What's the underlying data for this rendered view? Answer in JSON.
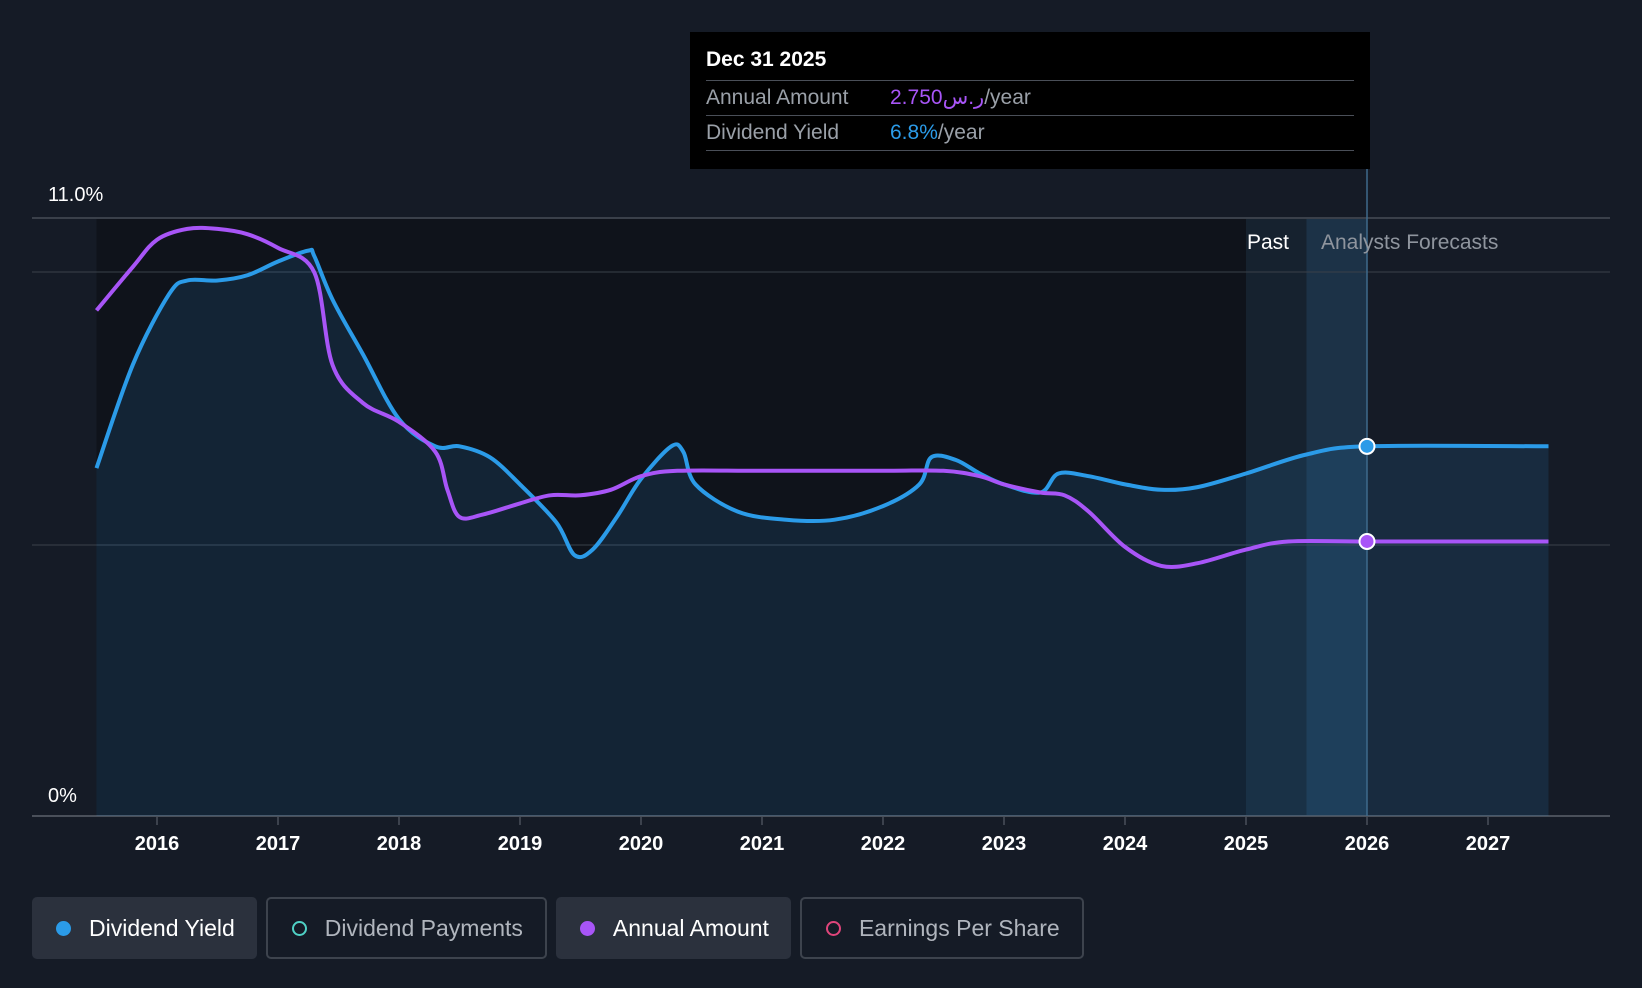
{
  "tooltip": {
    "date": "Dec 31 2025",
    "annual_label": "Annual Amount",
    "annual_value": "2.750ر.س",
    "annual_unit": "/year",
    "yield_label": "Dividend Yield",
    "yield_value": "6.8%",
    "yield_unit": "/year"
  },
  "legend": [
    {
      "label": "Dividend Yield",
      "color": "#2b9be8",
      "active": true,
      "filled": true
    },
    {
      "label": "Dividend Payments",
      "color": "#4fd1c5",
      "active": false,
      "filled": false
    },
    {
      "label": "Annual Amount",
      "color": "#a855f7",
      "active": true,
      "filled": true
    },
    {
      "label": "Earnings Per Share",
      "color": "#e0457b",
      "active": false,
      "filled": false
    }
  ],
  "colors": {
    "background": "#151b26",
    "past_region": "#0f131b",
    "yield_line": "#2b9be8",
    "annual_line": "#a855f7",
    "grid": "#3a404a"
  },
  "chart_data": {
    "type": "line",
    "y_tick_labels": [
      "11.0%",
      "0%"
    ],
    "ylim": [
      0,
      11
    ],
    "xlim": [
      2015.5,
      2027.5
    ],
    "x_tick_labels": [
      "2016",
      "2017",
      "2018",
      "2019",
      "2020",
      "2021",
      "2022",
      "2023",
      "2024",
      "2025",
      "2026",
      "2027"
    ],
    "region_labels": {
      "past": "Past",
      "forecast": "Analysts Forecasts"
    },
    "highlight_x": 2026.0,
    "series": [
      {
        "name": "Dividend Yield",
        "color": "#2b9be8",
        "area": true,
        "points": [
          [
            2015.5,
            6.4
          ],
          [
            2015.8,
            8.3
          ],
          [
            2016.1,
            9.6
          ],
          [
            2016.25,
            9.85
          ],
          [
            2016.5,
            9.85
          ],
          [
            2016.75,
            9.95
          ],
          [
            2017.0,
            10.2
          ],
          [
            2017.25,
            10.4
          ],
          [
            2017.3,
            10.3
          ],
          [
            2017.45,
            9.5
          ],
          [
            2017.7,
            8.5
          ],
          [
            2018.0,
            7.3
          ],
          [
            2018.3,
            6.8
          ],
          [
            2018.5,
            6.8
          ],
          [
            2018.75,
            6.6
          ],
          [
            2019.0,
            6.1
          ],
          [
            2019.3,
            5.4
          ],
          [
            2019.45,
            4.8
          ],
          [
            2019.6,
            4.9
          ],
          [
            2019.8,
            5.5
          ],
          [
            2020.0,
            6.2
          ],
          [
            2020.25,
            6.8
          ],
          [
            2020.35,
            6.7
          ],
          [
            2020.45,
            6.1
          ],
          [
            2020.8,
            5.6
          ],
          [
            2021.2,
            5.45
          ],
          [
            2021.6,
            5.45
          ],
          [
            2022.0,
            5.7
          ],
          [
            2022.3,
            6.1
          ],
          [
            2022.4,
            6.6
          ],
          [
            2022.6,
            6.55
          ],
          [
            2022.8,
            6.3
          ],
          [
            2023.0,
            6.1
          ],
          [
            2023.3,
            5.95
          ],
          [
            2023.45,
            6.3
          ],
          [
            2023.7,
            6.25
          ],
          [
            2024.0,
            6.1
          ],
          [
            2024.3,
            6.0
          ],
          [
            2024.6,
            6.05
          ],
          [
            2025.0,
            6.3
          ],
          [
            2025.5,
            6.65
          ],
          [
            2026.0,
            6.8
          ],
          [
            2027.5,
            6.8
          ]
        ]
      },
      {
        "name": "Annual Amount",
        "color": "#a855f7",
        "area": false,
        "points": [
          [
            2015.5,
            9.3
          ],
          [
            2015.8,
            10.1
          ],
          [
            2016.0,
            10.6
          ],
          [
            2016.25,
            10.8
          ],
          [
            2016.5,
            10.8
          ],
          [
            2016.75,
            10.7
          ],
          [
            2017.0,
            10.45
          ],
          [
            2017.3,
            10.0
          ],
          [
            2017.45,
            8.3
          ],
          [
            2017.7,
            7.6
          ],
          [
            2018.0,
            7.25
          ],
          [
            2018.3,
            6.7
          ],
          [
            2018.4,
            6.0
          ],
          [
            2018.5,
            5.5
          ],
          [
            2018.7,
            5.55
          ],
          [
            2019.0,
            5.75
          ],
          [
            2019.25,
            5.9
          ],
          [
            2019.5,
            5.9
          ],
          [
            2019.75,
            6.0
          ],
          [
            2020.0,
            6.25
          ],
          [
            2020.3,
            6.35
          ],
          [
            2021.0,
            6.35
          ],
          [
            2022.0,
            6.35
          ],
          [
            2022.5,
            6.35
          ],
          [
            2022.8,
            6.25
          ],
          [
            2023.0,
            6.1
          ],
          [
            2023.3,
            5.95
          ],
          [
            2023.5,
            5.9
          ],
          [
            2023.7,
            5.6
          ],
          [
            2024.0,
            4.95
          ],
          [
            2024.3,
            4.6
          ],
          [
            2024.6,
            4.65
          ],
          [
            2025.0,
            4.9
          ],
          [
            2025.35,
            5.05
          ],
          [
            2026.0,
            5.05
          ],
          [
            2027.5,
            5.05
          ]
        ]
      }
    ]
  }
}
